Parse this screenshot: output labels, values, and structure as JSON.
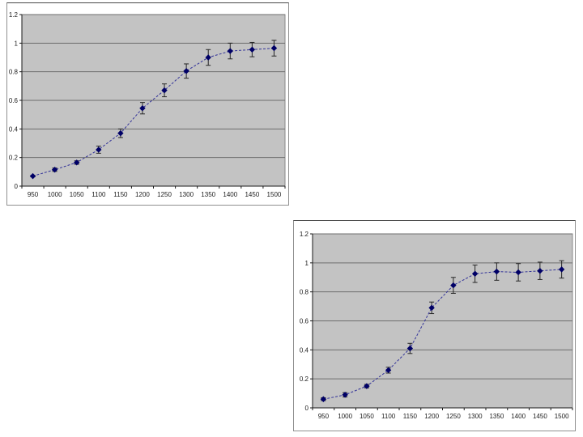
{
  "page": {
    "background_color": "#ffffff"
  },
  "colors": {
    "plot_bg": "#c3c3c3",
    "plot_border": "#8a8a8a",
    "gridline": "#6e6e6e",
    "axis": "#1a1a1a",
    "tick_label": "#1a1a1a",
    "series_line": "#333399",
    "marker_fill": "#000066",
    "error_bar": "#262626",
    "chart_border": "#909090"
  },
  "chart_data": [
    {
      "name": "top-left-chart",
      "type": "line",
      "categories": [
        "950",
        "1000",
        "1050",
        "1100",
        "1150",
        "1200",
        "1250",
        "1300",
        "1350",
        "1400",
        "1450",
        "1500"
      ],
      "series": [
        {
          "values": [
            0.07,
            0.115,
            0.165,
            0.255,
            0.37,
            0.545,
            0.67,
            0.805,
            0.9,
            0.945,
            0.955,
            0.965
          ],
          "error_bars": [
            0.005,
            0.012,
            0.012,
            0.025,
            0.03,
            0.04,
            0.045,
            0.05,
            0.055,
            0.055,
            0.05,
            0.055
          ]
        }
      ],
      "yticks": [
        "0",
        "0.2",
        "0.4",
        "0.6",
        "0.8",
        "1",
        "1.2"
      ],
      "ylim": [
        0,
        1.2
      ],
      "grid": true,
      "legend": false,
      "marker": "diamond",
      "line_style": "dashed",
      "has_error_bars": true
    },
    {
      "name": "bottom-right-chart",
      "type": "line",
      "categories": [
        "950",
        "1000",
        "1050",
        "1100",
        "1150",
        "1200",
        "1250",
        "1300",
        "1350",
        "1400",
        "1450",
        "1500"
      ],
      "series": [
        {
          "values": [
            0.06,
            0.09,
            0.15,
            0.26,
            0.41,
            0.69,
            0.845,
            0.925,
            0.94,
            0.935,
            0.945,
            0.955
          ],
          "error_bars": [
            0.01,
            0.015,
            0.012,
            0.02,
            0.035,
            0.04,
            0.055,
            0.06,
            0.06,
            0.06,
            0.06,
            0.06
          ]
        }
      ],
      "yticks": [
        "0",
        "0.2",
        "0.4",
        "0.6",
        "0.8",
        "1",
        "1.2"
      ],
      "ylim": [
        0,
        1.2
      ],
      "grid": true,
      "legend": false,
      "marker": "diamond",
      "line_style": "dashed",
      "has_error_bars": true
    }
  ]
}
